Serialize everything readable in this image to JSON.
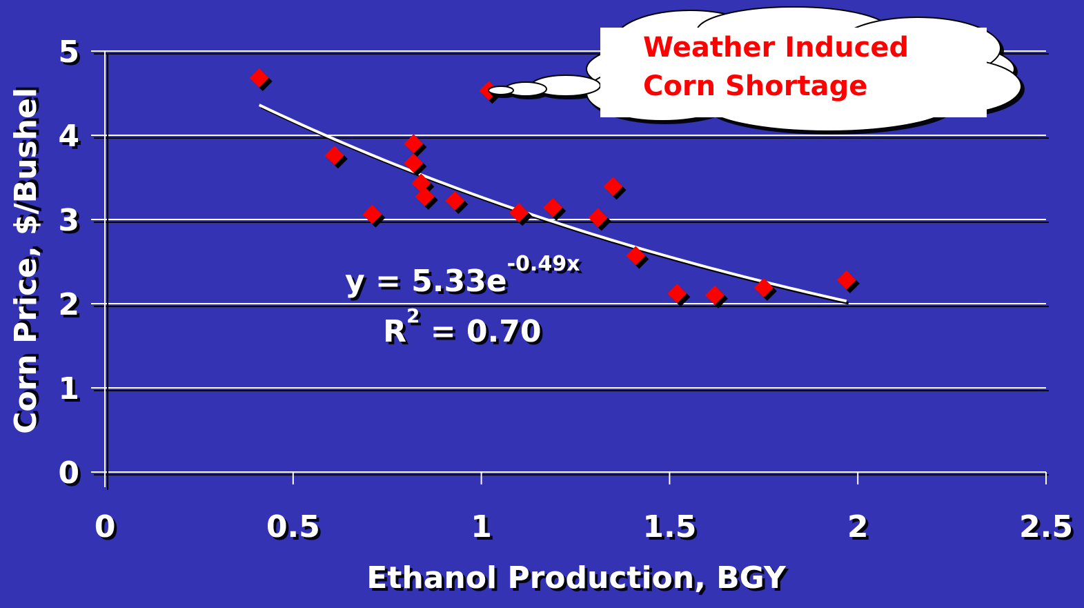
{
  "chart_data": {
    "type": "scatter",
    "x_label": "Ethanol Production, BGY",
    "y_label": "Corn Price, $/Bushel",
    "x": [
      0.41,
      1.02,
      0.61,
      0.82,
      0.82,
      0.71,
      0.84,
      0.85,
      0.93,
      1.1,
      1.19,
      1.31,
      1.35,
      1.41,
      1.52,
      1.62,
      1.75,
      1.97
    ],
    "values": [
      4.68,
      4.53,
      3.76,
      3.9,
      3.67,
      3.06,
      3.43,
      3.27,
      3.22,
      3.08,
      3.14,
      3.02,
      3.39,
      2.57,
      2.12,
      2.1,
      2.19,
      2.28
    ],
    "color": "#ff0000",
    "xlim": [
      0,
      2.5
    ],
    "xticks": [
      0,
      0.5,
      1,
      1.5,
      2,
      2.5
    ],
    "ylim": [
      0,
      5
    ],
    "yticks": [
      0,
      1,
      2,
      3,
      4,
      5
    ],
    "grid": true,
    "trendline": {
      "equation": "y = 5.33e",
      "exponent": "-0.49x",
      "r2_prefix": "R",
      "r2_power": "2",
      "r2_value": " = 0.70"
    },
    "annotation": [
      "Weather Induced",
      "Corn Shortage"
    ]
  }
}
